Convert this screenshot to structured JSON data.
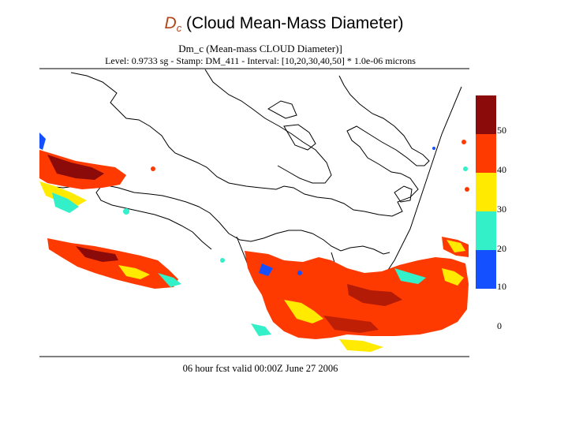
{
  "slide": {
    "title_symbol": "D",
    "title_subscript": "c",
    "title_rest": " (Cloud Mean-Mass Diameter)"
  },
  "plot": {
    "header_line1": "Dm_c (Mean-mass CLOUD Diameter)]",
    "header_line2": "Level: 0.9733 sg - Stamp: DM_411 - Interval: [10,20,30,40,50] * 1.0e-06 microns",
    "footer": "06 hour fcst valid 00:00Z June 27 2006"
  },
  "colorbar": {
    "labels": [
      "50",
      "40",
      "30",
      "20",
      "10",
      "0"
    ],
    "colors": [
      "#8b0a0a",
      "#ff3a00",
      "#ffea00",
      "#33f0c8",
      "#1450ff"
    ]
  }
}
